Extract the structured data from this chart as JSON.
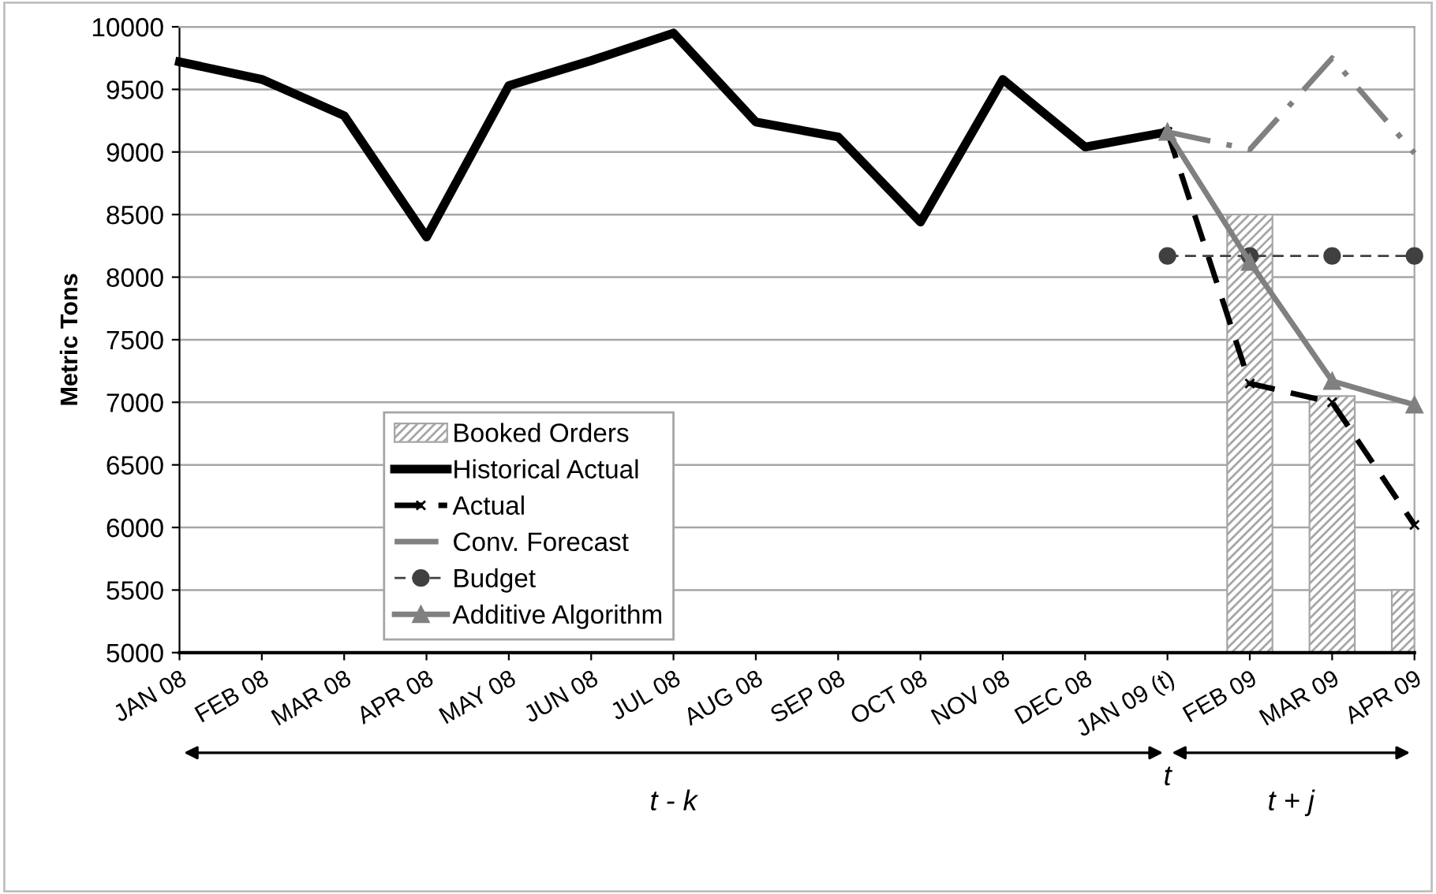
{
  "chart_data": {
    "type": "line",
    "ylabel": "Metric Tons",
    "categories": [
      "JAN 08",
      "FEB 08",
      "MAR 08",
      "APR 08",
      "MAY 08",
      "JUN 08",
      "JUL 08",
      "AUG 08",
      "SEP 08",
      "OCT 08",
      "NOV 08",
      "DEC 08",
      "JAN 09 (t)",
      "FEB 09",
      "MAR 09",
      "APR 09"
    ],
    "series": [
      {
        "name": "Booked Orders",
        "type": "bar",
        "color": "#a6a6a6",
        "values": [
          null,
          null,
          null,
          null,
          null,
          null,
          null,
          null,
          null,
          null,
          null,
          null,
          null,
          8500,
          7050,
          5500
        ]
      },
      {
        "name": "Historical Actual",
        "color": "#000000",
        "line_style": "solid",
        "marker": "none",
        "values": [
          9720,
          9580,
          9290,
          8320,
          9530,
          9730,
          9950,
          9240,
          9120,
          8440,
          9580,
          9040,
          9160,
          null,
          null,
          null
        ]
      },
      {
        "name": "Actual",
        "color": "#000000",
        "line_style": "dashed",
        "marker": "cross",
        "values": [
          null,
          null,
          null,
          null,
          null,
          null,
          null,
          null,
          null,
          null,
          null,
          null,
          9160,
          7150,
          7000,
          6020
        ]
      },
      {
        "name": "Conv. Forecast",
        "color": "#808080",
        "line_style": "dashdot",
        "marker": "none",
        "values": [
          null,
          null,
          null,
          null,
          null,
          null,
          null,
          null,
          null,
          null,
          null,
          null,
          9160,
          9020,
          9750,
          8990
        ]
      },
      {
        "name": "Budget",
        "color": "#404040",
        "line_style": "dashed",
        "marker": "circle",
        "values": [
          null,
          null,
          null,
          null,
          null,
          null,
          null,
          null,
          null,
          null,
          null,
          null,
          8170,
          8170,
          8170,
          8170
        ]
      },
      {
        "name": "Additive Algorithm",
        "color": "#808080",
        "line_style": "solid",
        "marker": "triangle",
        "values": [
          null,
          null,
          null,
          null,
          null,
          null,
          null,
          null,
          null,
          null,
          null,
          null,
          9160,
          8120,
          7170,
          6980
        ]
      }
    ],
    "ylim": [
      5000,
      10000
    ],
    "yticks": [
      5000,
      5500,
      6000,
      6500,
      7000,
      7500,
      8000,
      8500,
      9000,
      9500,
      10000
    ],
    "grid": "y",
    "legend": "bottom left",
    "annotations": [
      "t - k",
      "t",
      "t + j"
    ]
  }
}
